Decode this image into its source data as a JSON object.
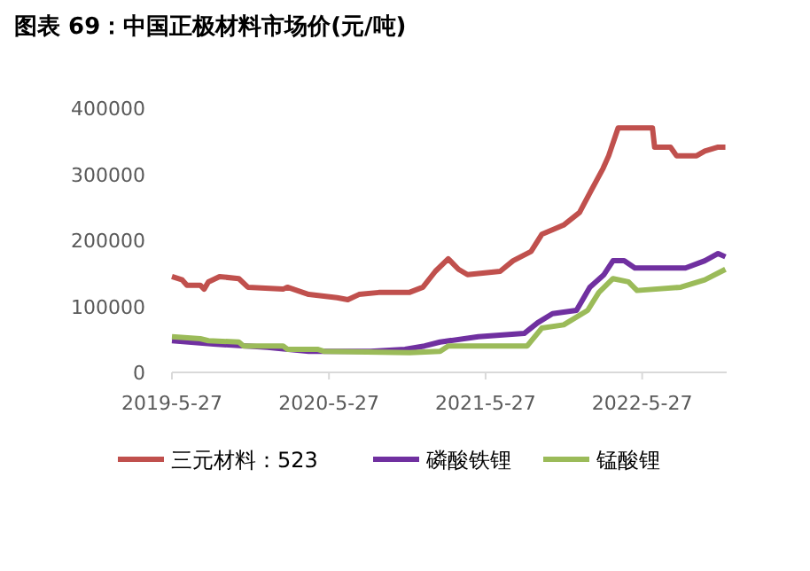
{
  "chart_data": {
    "type": "line",
    "title": "图表 69：中国正极材料市场价(元/吨)",
    "legend": "bottom",
    "xlim": [
      "2019-05-27",
      "2022-12-10"
    ],
    "xticks": [
      {
        "value": "2019-05-27",
        "label": "2019-5-27"
      },
      {
        "value": "2020-05-27",
        "label": "2020-5-27"
      },
      {
        "value": "2021-05-27",
        "label": "2021-5-27"
      },
      {
        "value": "2022-05-27",
        "label": "2022-5-27"
      }
    ],
    "ylim": [
      0,
      400000
    ],
    "yticks": [
      0,
      100000,
      200000,
      300000,
      400000
    ],
    "series": [
      {
        "name": "三元材料：523",
        "color": "#c0504d",
        "x": [
          "2019-05-27",
          "2019-06-20",
          "2019-07-01",
          "2019-08-01",
          "2019-08-10",
          "2019-08-20",
          "2019-09-15",
          "2019-10-30",
          "2019-11-20",
          "2020-02-10",
          "2020-02-20",
          "2020-04-10",
          "2020-06-15",
          "2020-07-10",
          "2020-08-05",
          "2020-09-20",
          "2020-11-30",
          "2021-01-01",
          "2021-01-30",
          "2021-03-01",
          "2021-03-25",
          "2021-04-15",
          "2021-06-30",
          "2021-07-30",
          "2021-09-10",
          "2021-10-05",
          "2021-11-25",
          "2022-01-01",
          "2022-01-27",
          "2022-02-25",
          "2022-03-10",
          "2022-04-01",
          "2022-06-20",
          "2022-06-25",
          "2022-08-01",
          "2022-08-15",
          "2022-10-01",
          "2022-10-20",
          "2022-11-20",
          "2022-12-07"
        ],
        "values": [
          145000,
          140000,
          132000,
          132000,
          126000,
          137000,
          145000,
          142000,
          129000,
          126000,
          129000,
          118000,
          113000,
          110000,
          118000,
          121000,
          121000,
          129000,
          153000,
          172000,
          156000,
          148000,
          153000,
          169000,
          183000,
          209000,
          223000,
          242000,
          274000,
          309000,
          328000,
          370000,
          370000,
          341000,
          341000,
          328000,
          328000,
          335000,
          341000,
          341000
        ]
      },
      {
        "name": "磷酸铁锂",
        "color": "#7030a0",
        "x": [
          "2019-05-27",
          "2019-09-01",
          "2020-01-05",
          "2020-04-10",
          "2020-09-01",
          "2020-11-20",
          "2021-01-05",
          "2021-02-10",
          "2021-05-10",
          "2021-08-25",
          "2021-09-25",
          "2021-10-30",
          "2021-12-25",
          "2022-01-25",
          "2022-02-27",
          "2022-03-20",
          "2022-04-15",
          "2022-05-10",
          "2022-09-05",
          "2022-10-20",
          "2022-11-20",
          "2022-12-07"
        ],
        "values": [
          48000,
          43000,
          38000,
          32000,
          32000,
          35000,
          40000,
          46000,
          54000,
          59000,
          75000,
          89000,
          94000,
          129000,
          148000,
          169000,
          169000,
          158000,
          158000,
          169000,
          180000,
          175000
        ]
      },
      {
        "name": "锰酸锂",
        "color": "#9bbb59",
        "x": [
          "2019-05-27",
          "2019-08-01",
          "2019-08-20",
          "2019-10-30",
          "2019-11-10",
          "2020-02-10",
          "2020-02-20",
          "2020-04-30",
          "2020-05-15",
          "2020-12-01",
          "2021-02-10",
          "2021-03-01",
          "2021-09-01",
          "2021-10-05",
          "2021-11-25",
          "2022-01-20",
          "2022-02-15",
          "2022-03-20",
          "2022-04-25",
          "2022-05-15",
          "2022-08-25",
          "2022-10-20",
          "2022-12-07"
        ],
        "values": [
          54000,
          51000,
          48000,
          46000,
          40000,
          40000,
          35000,
          35000,
          32000,
          30000,
          32000,
          40000,
          40000,
          67000,
          72000,
          94000,
          121000,
          142000,
          137000,
          124000,
          129000,
          140000,
          156000
        ]
      }
    ]
  }
}
